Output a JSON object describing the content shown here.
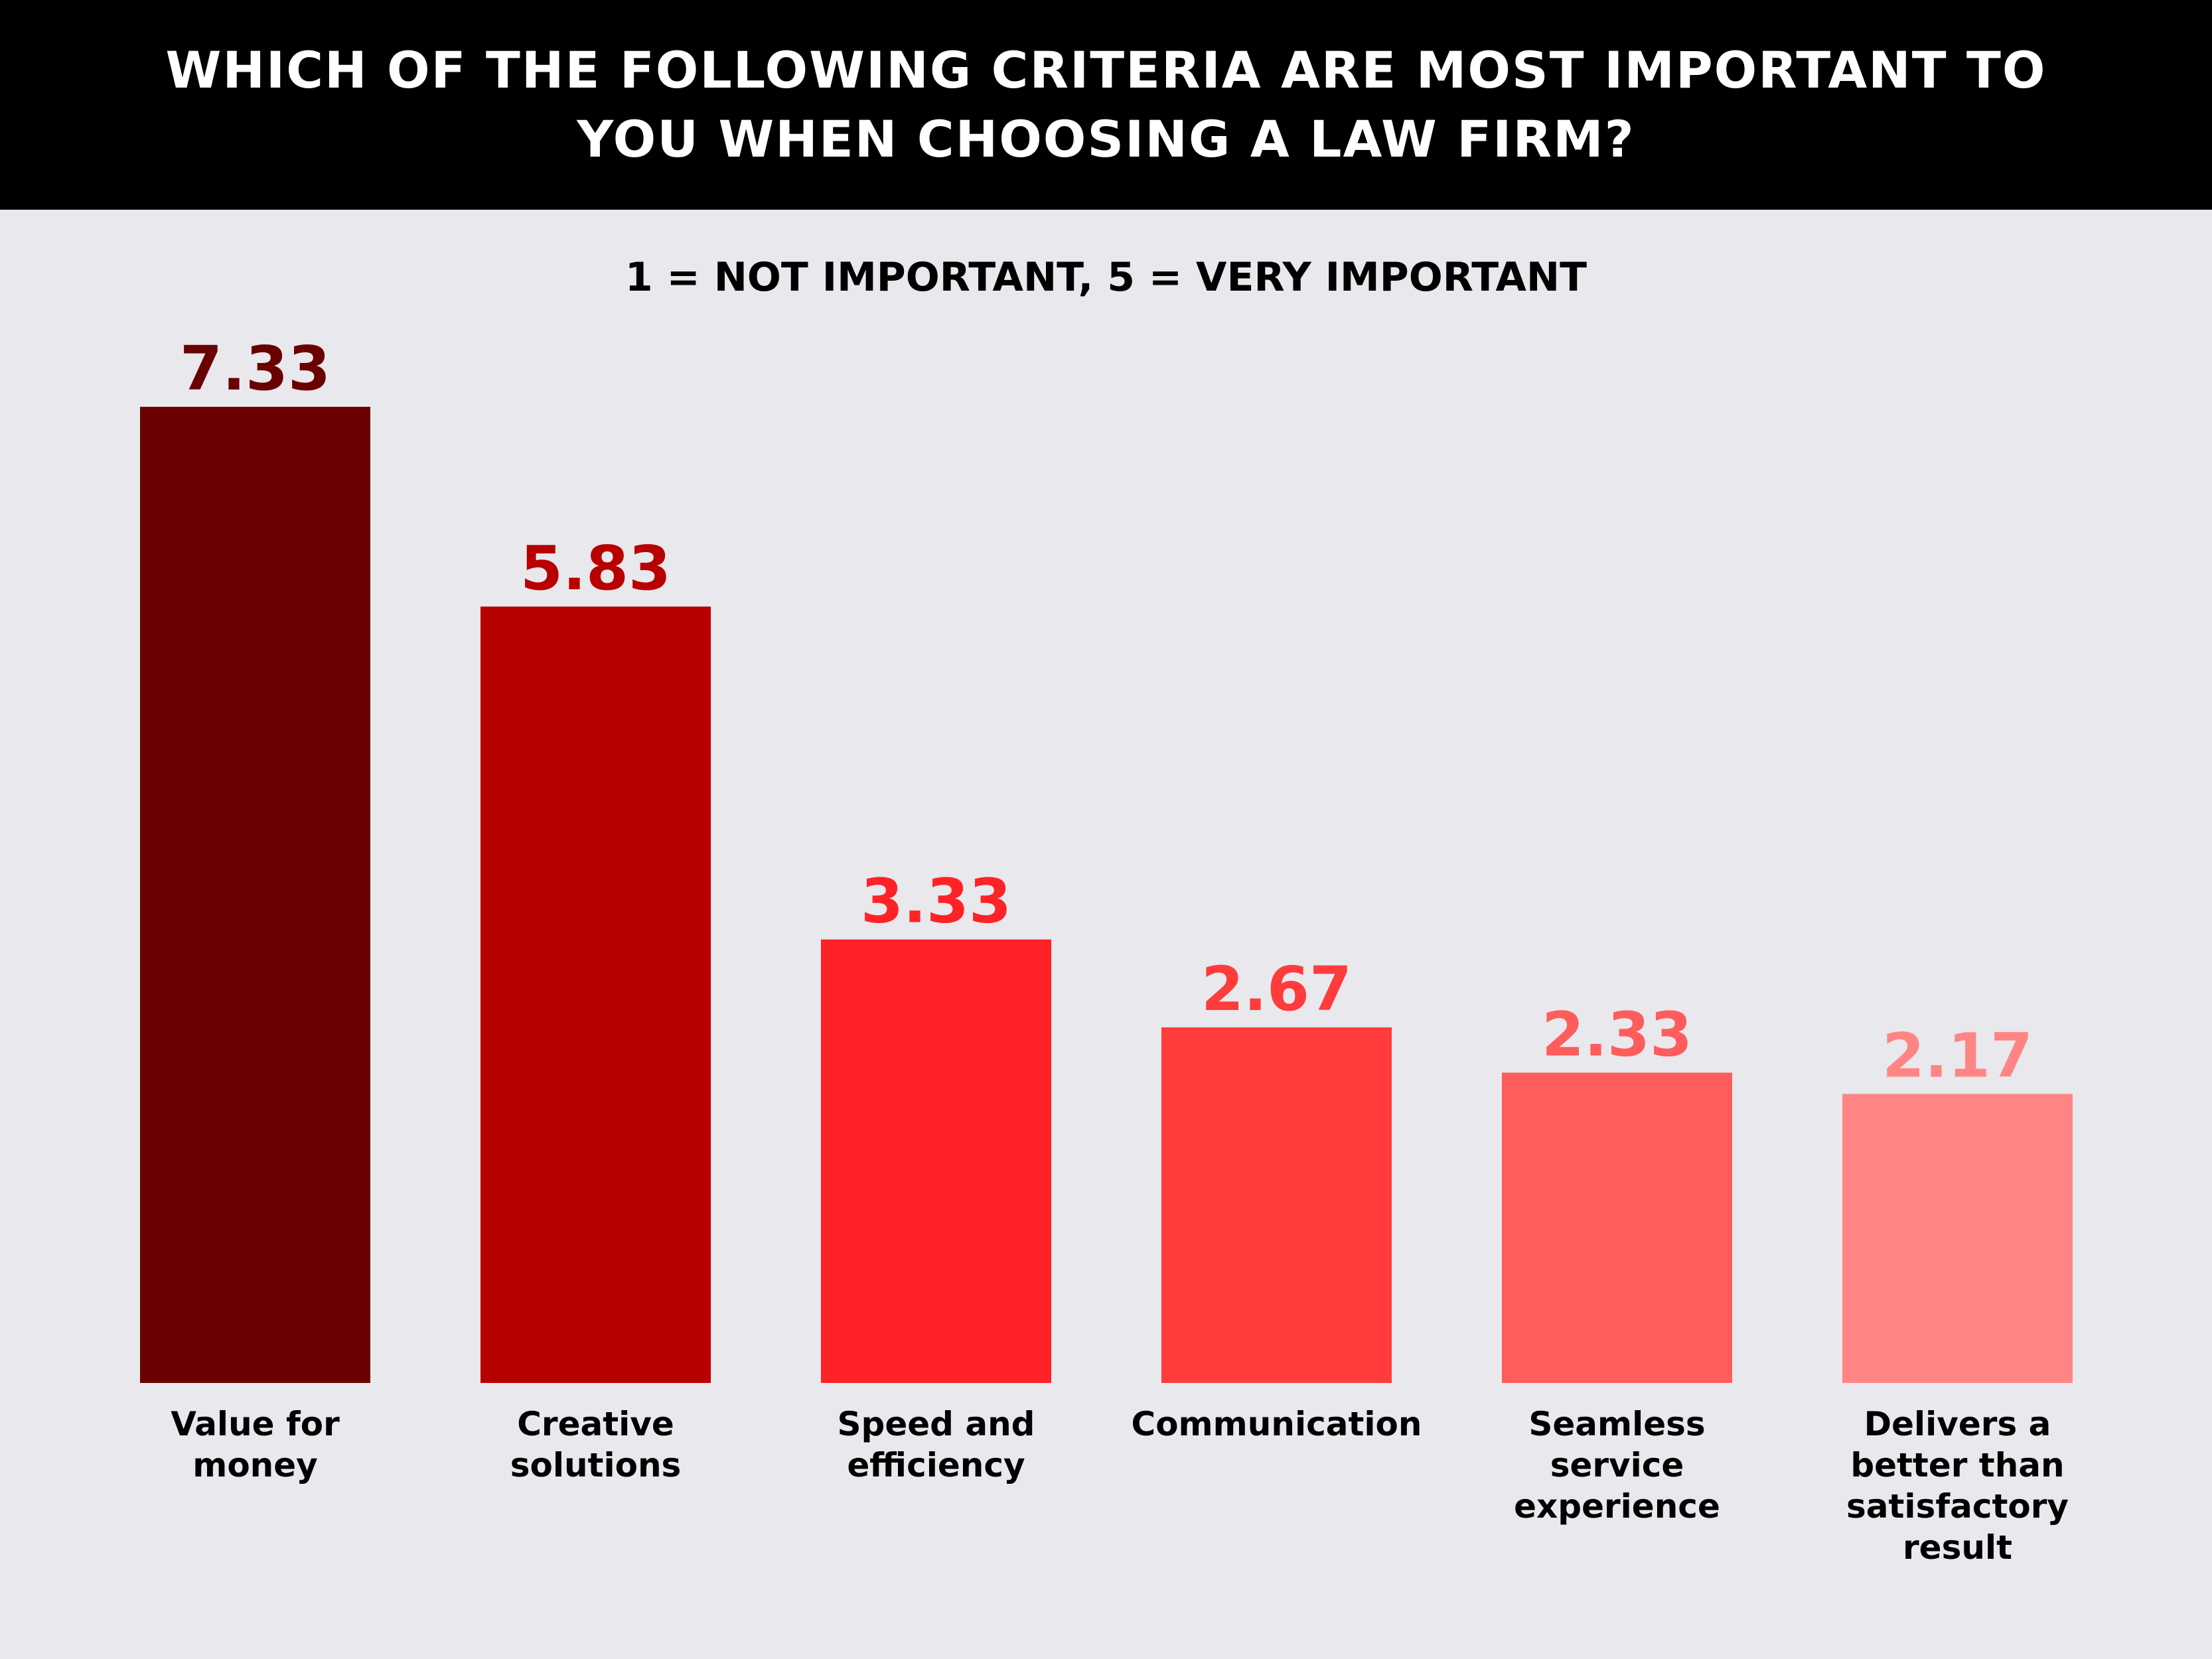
{
  "header": {
    "title": "WHICH OF THE FOLLOWING CRITERIA ARE MOST IMPORTANT TO YOU WHEN CHOOSING A LAW FIRM?"
  },
  "chart_data": {
    "type": "bar",
    "title": "WHICH OF THE FOLLOWING CRITERIA ARE MOST IMPORTANT TO YOU WHEN CHOOSING A LAW FIRM?",
    "subtitle": "1 = NOT IMPORTANT, 5 = VERY IMPORTANT",
    "categories": [
      [
        "Value for",
        "money"
      ],
      [
        "Creative",
        "solutions"
      ],
      [
        "Speed and",
        "efficiency"
      ],
      [
        "Communication"
      ],
      [
        "Seamless",
        "service",
        "experience"
      ],
      [
        "Delivers a",
        "better than",
        "satisfactory",
        "result"
      ]
    ],
    "values": [
      7.33,
      5.83,
      3.33,
      2.67,
      2.33,
      2.17
    ],
    "value_labels": [
      "7.33",
      "5.83",
      "3.33",
      "2.67",
      "2.33",
      "2.17"
    ],
    "colors": [
      "#6a0000",
      "#b80000",
      "#ff2226",
      "#ff3b3c",
      "#ff5c5c",
      "#ff8585"
    ],
    "ylim": [
      0,
      7.33
    ],
    "grid": false,
    "legend": "none"
  }
}
